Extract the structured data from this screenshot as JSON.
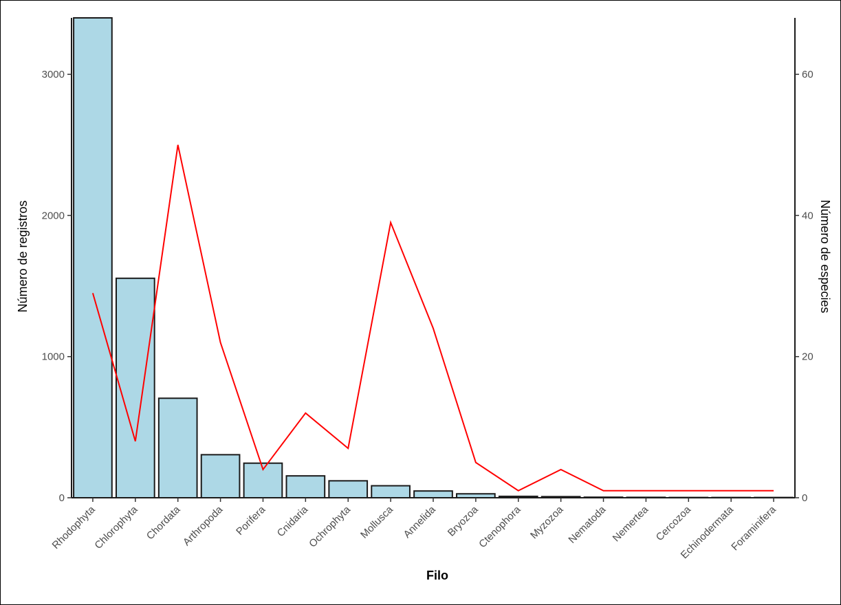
{
  "chart_data": {
    "type": "bar",
    "title": "",
    "xlabel": "Filo",
    "ylabel": "Número de registros",
    "y2label": "Número de especies",
    "categories": [
      "Rhodophyta",
      "Chlorophyta",
      "Chordata",
      "Arthropoda",
      "Porifera",
      "Cnidaria",
      "Ochrophyta",
      "Mollusca",
      "Annelida",
      "Bryozoa",
      "Ctenophora",
      "Myzozoa",
      "Nematoda",
      "Nemertea",
      "Cercozoa",
      "Echinodermata",
      "Foraminifera"
    ],
    "series": [
      {
        "axis": "left",
        "kind": "bar",
        "color": "#add8e6",
        "values": [
          3400,
          1555,
          705,
          305,
          245,
          155,
          120,
          85,
          48,
          28,
          10,
          8,
          4,
          3,
          2,
          2,
          2
        ]
      },
      {
        "axis": "right",
        "kind": "line",
        "color": "#ff0000",
        "values": [
          29,
          8,
          50,
          22,
          4,
          12,
          7,
          39,
          24,
          5,
          1,
          4,
          1,
          1,
          1,
          1,
          1
        ]
      }
    ],
    "ylim": [
      0,
      3400
    ],
    "y2lim": [
      0,
      68
    ],
    "yticks": [
      0,
      1000,
      2000,
      3000
    ],
    "y2ticks": [
      0,
      20,
      40,
      60
    ],
    "grid": false,
    "legend": "none"
  }
}
